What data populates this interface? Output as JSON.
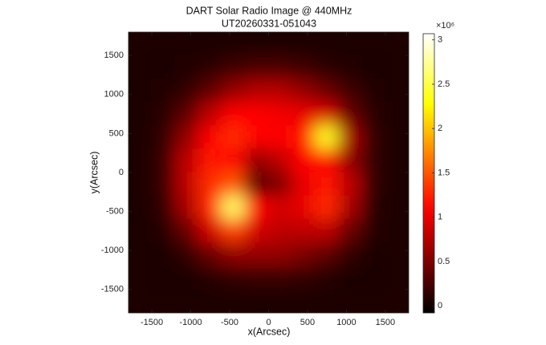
{
  "chart_data": {
    "type": "heatmap",
    "title": "DART Solar Radio Image @ 440MHz",
    "subtitle": "UT20260331-051043",
    "x_label": "x(Arcsec)",
    "y_label": "y(Arcsec)",
    "colormap": "hot",
    "colorbar_exponent": "×10⁶",
    "xlim": [
      -1800,
      1800
    ],
    "ylim": [
      -1800,
      1800
    ],
    "xticks": [
      -1500,
      -1000,
      -500,
      0,
      500,
      1000,
      1500
    ],
    "yticks": [
      -1500,
      -1000,
      -500,
      0,
      500,
      1000,
      1500
    ],
    "clim": [
      -0.08,
      3.07
    ],
    "cticks": [
      0,
      0.5,
      1,
      1.5,
      2,
      2.5,
      3
    ],
    "x": [
      -1650,
      -1350,
      -1050,
      -750,
      -450,
      -150,
      150,
      450,
      750,
      1050,
      1350,
      1650
    ],
    "y": [
      1650,
      1350,
      1050,
      750,
      450,
      150,
      -150,
      -450,
      -750,
      -1050,
      -1350,
      -1650
    ],
    "z": [
      [
        0.05,
        0.05,
        0.05,
        0.05,
        0.05,
        0.05,
        0.05,
        0.05,
        0.05,
        0.05,
        0.05,
        0.05
      ],
      [
        0.05,
        0.05,
        0.08,
        0.12,
        0.2,
        0.25,
        0.25,
        0.2,
        0.12,
        0.08,
        0.05,
        0.05
      ],
      [
        0.05,
        0.08,
        0.15,
        0.35,
        0.6,
        0.75,
        0.75,
        0.6,
        0.4,
        0.2,
        0.08,
        0.05
      ],
      [
        0.05,
        0.12,
        0.35,
        0.8,
        1.1,
        1.1,
        1.05,
        1.0,
        0.9,
        0.4,
        0.12,
        0.05
      ],
      [
        0.06,
        0.15,
        0.6,
        1.1,
        1.3,
        1.1,
        1.1,
        1.2,
        2.4,
        0.7,
        0.15,
        0.05
      ],
      [
        0.06,
        0.18,
        0.8,
        1.2,
        1.1,
        0.6,
        0.8,
        1.1,
        1.1,
        0.6,
        0.15,
        0.05
      ],
      [
        0.06,
        0.18,
        0.8,
        1.3,
        1.5,
        0.3,
        0.5,
        1.0,
        1.2,
        0.8,
        0.15,
        0.05
      ],
      [
        0.05,
        0.15,
        0.7,
        1.3,
        2.6,
        1.1,
        0.9,
        1.0,
        1.3,
        0.7,
        0.12,
        0.05
      ],
      [
        0.05,
        0.1,
        0.4,
        0.9,
        1.4,
        0.9,
        0.8,
        0.8,
        0.8,
        0.4,
        0.1,
        0.05
      ],
      [
        0.05,
        0.06,
        0.15,
        0.4,
        0.6,
        0.6,
        0.6,
        0.5,
        0.35,
        0.15,
        0.06,
        0.05
      ],
      [
        0.05,
        0.05,
        0.06,
        0.1,
        0.15,
        0.18,
        0.18,
        0.15,
        0.1,
        0.06,
        0.05,
        0.05
      ],
      [
        0.05,
        0.05,
        0.05,
        0.05,
        0.05,
        0.05,
        0.05,
        0.05,
        0.05,
        0.05,
        0.05,
        0.05
      ]
    ]
  }
}
